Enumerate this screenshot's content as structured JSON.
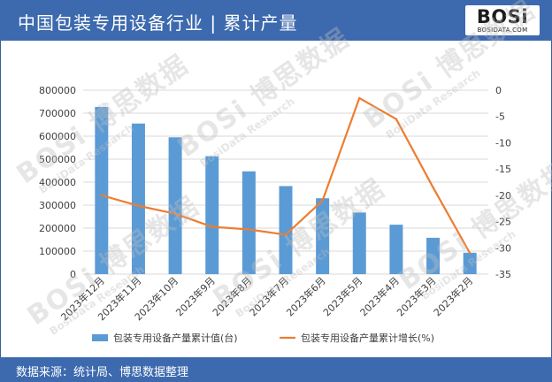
{
  "header": {
    "title": "中国包装专用设备行业 | 累计产量",
    "logo_main": "BOSi",
    "logo_sub": "BOSIDATA.COM"
  },
  "footer": {
    "source": "数据来源：统计局、博思数据整理"
  },
  "watermark": {
    "main": "BOSi 博思数据",
    "sub": "BosiData Research"
  },
  "colors": {
    "header_bg": "#3d6aae",
    "bar": "#5b9bd5",
    "line": "#ed7d31"
  },
  "chart_data": {
    "type": "bar",
    "categories": [
      "2023年12月",
      "2023年11月",
      "2023年10月",
      "2023年9月",
      "2023年8月",
      "2023年7月",
      "2023年6月",
      "2023年5月",
      "2023年4月",
      "2023年3月",
      "2023年2月"
    ],
    "series": [
      {
        "name": "包装专用设备产量累计值(台)",
        "type": "bar",
        "axis": "left",
        "values": [
          727000,
          655000,
          595000,
          513000,
          447000,
          383000,
          330000,
          268000,
          215000,
          158000,
          93000
        ]
      },
      {
        "name": "包装专用设备产量累计增长(%)",
        "type": "line",
        "axis": "right",
        "values": [
          -20,
          -22,
          -23.5,
          -26,
          -26.5,
          -27.5,
          -21,
          -1.5,
          -5.5,
          -18.5,
          -31
        ]
      }
    ],
    "y_left": {
      "min": 0,
      "max": 800000,
      "ticks": [
        0,
        100000,
        200000,
        300000,
        400000,
        500000,
        600000,
        700000,
        800000
      ]
    },
    "y_right": {
      "min": -35,
      "max": 0,
      "ticks": [
        0,
        -5,
        -10,
        -15,
        -20,
        -25,
        -30,
        -35
      ]
    },
    "grid": true,
    "legend": "bottom"
  }
}
